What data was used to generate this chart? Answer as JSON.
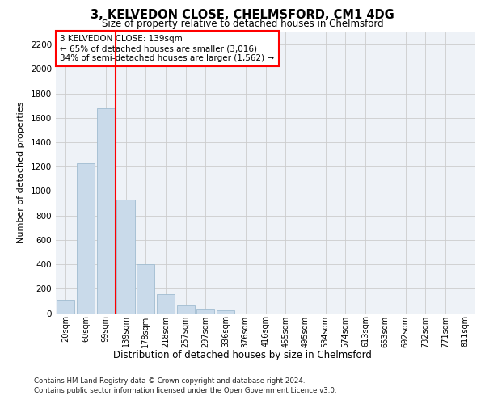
{
  "title_line1": "3, KELVEDON CLOSE, CHELMSFORD, CM1 4DG",
  "title_line2": "Size of property relative to detached houses in Chelmsford",
  "xlabel": "Distribution of detached houses by size in Chelmsford",
  "ylabel": "Number of detached properties",
  "bar_labels": [
    "20sqm",
    "60sqm",
    "99sqm",
    "139sqm",
    "178sqm",
    "218sqm",
    "257sqm",
    "297sqm",
    "336sqm",
    "376sqm",
    "416sqm",
    "455sqm",
    "495sqm",
    "534sqm",
    "574sqm",
    "613sqm",
    "653sqm",
    "692sqm",
    "732sqm",
    "771sqm",
    "811sqm"
  ],
  "bar_values": [
    110,
    1230,
    1680,
    930,
    400,
    155,
    65,
    30,
    20,
    0,
    0,
    0,
    0,
    0,
    0,
    0,
    0,
    0,
    0,
    0,
    0
  ],
  "bar_color": "#c9daea",
  "bar_edge_color": "#a0bcd0",
  "vline_color": "red",
  "annotation_text": "3 KELVEDON CLOSE: 139sqm\n← 65% of detached houses are smaller (3,016)\n34% of semi-detached houses are larger (1,562) →",
  "ylim": [
    0,
    2300
  ],
  "yticks": [
    0,
    200,
    400,
    600,
    800,
    1000,
    1200,
    1400,
    1600,
    1800,
    2000,
    2200
  ],
  "footer_line1": "Contains HM Land Registry data © Crown copyright and database right 2024.",
  "footer_line2": "Contains public sector information licensed under the Open Government Licence v3.0.",
  "grid_color": "#cccccc",
  "bg_color": "#eef2f7"
}
